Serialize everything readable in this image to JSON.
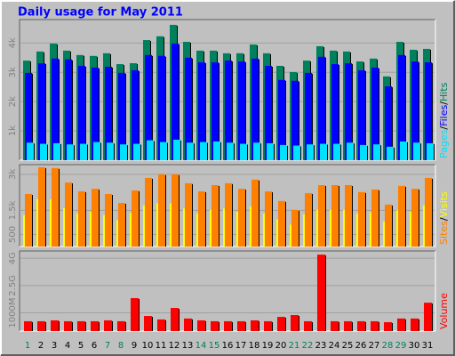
{
  "chart_data": [
    {
      "type": "bar",
      "title": "Daily usage for May 2011",
      "legend_separator": "/",
      "ylim": [
        0,
        4800
      ],
      "yticks": [
        {
          "value": 1000,
          "label": "1k"
        },
        {
          "value": 2000,
          "label": "2k"
        },
        {
          "value": 3000,
          "label": "3k"
        },
        {
          "value": 4000,
          "label": "4k"
        }
      ],
      "grid": true,
      "series": [
        {
          "name": "Hits",
          "color": "#00805c",
          "values": [
            3400,
            3710,
            3980,
            3740,
            3590,
            3560,
            3650,
            3280,
            3310,
            4100,
            4230,
            4620,
            4040,
            3740,
            3740,
            3650,
            3650,
            3950,
            3650,
            3220,
            3010,
            3400,
            3890,
            3740,
            3710,
            3370,
            3470,
            2860,
            4040,
            3770,
            3800
          ]
        },
        {
          "name": "Files",
          "color": "#0000ff",
          "values": [
            2980,
            3310,
            3470,
            3440,
            3220,
            3160,
            3190,
            2980,
            3070,
            3590,
            3560,
            3980,
            3500,
            3340,
            3340,
            3400,
            3370,
            3470,
            3220,
            2740,
            2710,
            2980,
            3530,
            3280,
            3310,
            3070,
            3160,
            2520,
            3590,
            3370,
            3340
          ]
        },
        {
          "name": "Pages",
          "color": "#00e0ff",
          "values": [
            600,
            560,
            580,
            540,
            560,
            620,
            600,
            540,
            560,
            680,
            620,
            700,
            600,
            620,
            640,
            600,
            560,
            600,
            580,
            520,
            500,
            540,
            560,
            560,
            600,
            520,
            540,
            460,
            640,
            600,
            580
          ]
        }
      ]
    },
    {
      "type": "bar",
      "legend_separator": "/",
      "ylim": [
        0,
        3400
      ],
      "yticks": [
        500,
        {
          "value": 1500,
          "label": "1.5k"
        },
        {
          "value": 3000,
          "label": "3k"
        }
      ],
      "grid": true,
      "series": [
        {
          "name": "Visits",
          "color": "#ffff00",
          "values": [
            1310,
            1970,
            1960,
            1600,
            1370,
            1440,
            1310,
            1090,
            1400,
            1710,
            1800,
            1800,
            1580,
            1370,
            1530,
            1580,
            1440,
            1670,
            1370,
            1130,
            910,
            1330,
            1530,
            1530,
            1530,
            1360,
            1420,
            1040,
            1510,
            1440,
            1710
          ]
        },
        {
          "name": "Sites",
          "color": "#ff8000",
          "values": [
            2180,
            3290,
            3260,
            2660,
            2290,
            2400,
            2180,
            1810,
            2330,
            2850,
            3000,
            3000,
            2630,
            2290,
            2550,
            2630,
            2400,
            2780,
            2290,
            1890,
            1520,
            2220,
            2550,
            2550,
            2550,
            2260,
            2370,
            1740,
            2520,
            2400,
            2850
          ]
        }
      ]
    },
    {
      "type": "bar",
      "ylim": [
        0,
        4400
      ],
      "yticks": [
        {
          "value": 1000,
          "label": "1000M"
        },
        {
          "value": 2500,
          "label": "2.5G"
        },
        {
          "value": 4000,
          "label": "4G"
        }
      ],
      "grid": true,
      "categories": [
        "1",
        "2",
        "3",
        "4",
        "5",
        "6",
        "7",
        "8",
        "9",
        "10",
        "11",
        "12",
        "13",
        "14",
        "15",
        "16",
        "17",
        "18",
        "19",
        "20",
        "21",
        "22",
        "23",
        "24",
        "25",
        "26",
        "27",
        "28",
        "29",
        "30",
        "31"
      ],
      "category_colors": [
        "#00805c",
        "#000000",
        "#000000",
        "#000000",
        "#000000",
        "#000000",
        "#00805c",
        "#00805c",
        "#000000",
        "#000000",
        "#000000",
        "#000000",
        "#000000",
        "#00805c",
        "#00805c",
        "#000000",
        "#000000",
        "#000000",
        "#000000",
        "#000000",
        "#00805c",
        "#00805c",
        "#000000",
        "#000000",
        "#000000",
        "#000000",
        "#000000",
        "#00805c",
        "#00805c",
        "#000000",
        "#000000"
      ],
      "series": [
        {
          "name": "Volume",
          "color": "#ff0000",
          "values": [
            540,
            540,
            590,
            540,
            540,
            540,
            590,
            540,
            1810,
            830,
            640,
            1270,
            690,
            590,
            540,
            540,
            540,
            590,
            540,
            780,
            880,
            540,
            4200,
            540,
            540,
            540,
            540,
            490,
            690,
            690,
            1560
          ]
        }
      ]
    }
  ]
}
